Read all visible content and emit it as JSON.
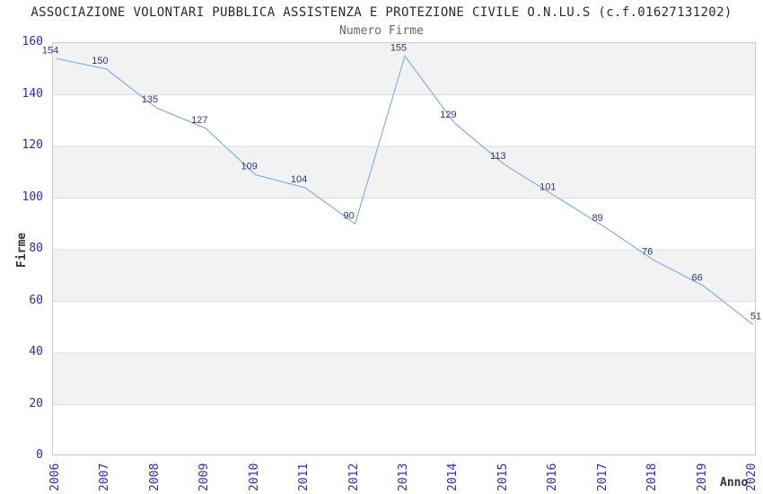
{
  "chart_data": {
    "type": "line",
    "title": "ASSOCIAZIONE VOLONTARI PUBBLICA ASSISTENZA E PROTEZIONE CIVILE O.N.LU.S (c.f.01627131202)",
    "subtitle": "Numero Firme",
    "xlabel": "Anno",
    "ylabel": "Firme",
    "categories": [
      "2006",
      "2007",
      "2008",
      "2009",
      "2010",
      "2011",
      "2012",
      "2013",
      "2014",
      "2015",
      "2016",
      "2017",
      "2018",
      "2019",
      "2020"
    ],
    "values": [
      154,
      150,
      135,
      127,
      109,
      104,
      90,
      155,
      129,
      113,
      101,
      89,
      76,
      66,
      51
    ],
    "ylim": [
      0,
      160
    ],
    "yticks": [
      0,
      20,
      40,
      60,
      80,
      100,
      120,
      140,
      160
    ],
    "grid": "alternating horizontal gray bands every 20 units",
    "legend": "none",
    "data_labels_visible": true,
    "colors": {
      "line": "#7fb0e6",
      "data_label": "#333380",
      "tick_label": "#2929cc",
      "band": "#f2f2f2",
      "grid_line": "#dddddd",
      "plot_border": "#cccccc",
      "title": "#2b2b2b",
      "subtitle": "#666666",
      "axis_title": "#333333"
    }
  }
}
